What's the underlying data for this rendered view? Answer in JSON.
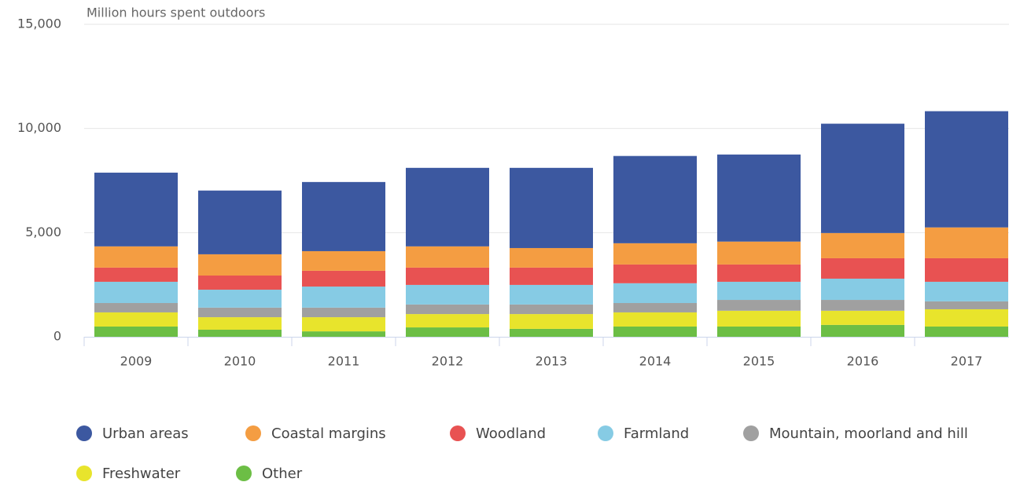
{
  "chart_data": {
    "type": "stacked_bar",
    "y_axis_title": "Million hours spent outdoors",
    "categories": [
      "2009",
      "2010",
      "2011",
      "2012",
      "2013",
      "2014",
      "2015",
      "2016",
      "2017"
    ],
    "series": [
      {
        "name": "Urban areas",
        "color": "#3c58a0",
        "values": [
          3540,
          3060,
          3320,
          3770,
          3850,
          4190,
          4180,
          5250,
          5580
        ]
      },
      {
        "name": "Coastal margins",
        "color": "#f49d42",
        "values": [
          1020,
          1020,
          940,
          1020,
          940,
          1020,
          1100,
          1210,
          1480
        ]
      },
      {
        "name": "Woodland",
        "color": "#e85252",
        "values": [
          680,
          680,
          760,
          830,
          830,
          900,
          830,
          980,
          1130
        ]
      },
      {
        "name": "Farmland",
        "color": "#86cbe4",
        "values": [
          1020,
          860,
          1010,
          940,
          940,
          950,
          870,
          1020,
          940
        ]
      },
      {
        "name": "Mountain, moorland and hill",
        "color": "#a0a0a0",
        "values": [
          450,
          460,
          460,
          460,
          460,
          450,
          520,
          520,
          380
        ]
      },
      {
        "name": "Freshwater",
        "color": "#e8e42c",
        "values": [
          680,
          600,
          680,
          640,
          710,
          680,
          760,
          680,
          830
        ]
      },
      {
        "name": "Other",
        "color": "#6cbe45",
        "values": [
          490,
          340,
          260,
          450,
          380,
          490,
          490,
          570,
          490
        ]
      }
    ],
    "ylim": [
      0,
      15000
    ],
    "yticks": [
      0,
      {
        "value": 5000,
        "label": "5,000"
      },
      {
        "value": 10000,
        "label": "10,000"
      },
      {
        "value": 15000,
        "label": "15,000"
      }
    ],
    "grid": true
  }
}
